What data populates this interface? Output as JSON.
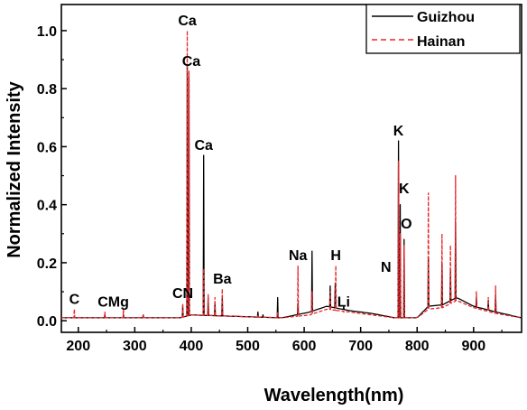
{
  "chart_data": {
    "type": "line",
    "title": "",
    "xlabel": "Wavelength(nm)",
    "ylabel": "Normalized Intensity",
    "xlim": [
      170,
      985
    ],
    "ylim": [
      -0.04,
      1.09
    ],
    "x_ticks": [
      200,
      300,
      400,
      500,
      600,
      700,
      800,
      900
    ],
    "x_tick_labels": [
      "200",
      "300",
      "400",
      "500",
      "600",
      "700",
      "800",
      "900"
    ],
    "y_ticks": [
      0.0,
      0.2,
      0.4,
      0.6,
      0.8,
      1.0
    ],
    "y_tick_labels": [
      "0.0",
      "0.2",
      "0.4",
      "0.6",
      "0.8",
      "1.0"
    ],
    "grid": false,
    "legend_position": "top-right",
    "series": [
      {
        "name": "Guizhou",
        "color": "#000000",
        "dash": "solid",
        "baseline": [
          [
            170,
            0.01
          ],
          [
            380,
            0.01
          ],
          [
            400,
            0.02
          ],
          [
            480,
            0.015
          ],
          [
            560,
            0.01
          ],
          [
            610,
            0.03
          ],
          [
            640,
            0.05
          ],
          [
            680,
            0.035
          ],
          [
            720,
            0.025
          ],
          [
            760,
            0.01
          ],
          [
            800,
            0.01
          ],
          [
            820,
            0.05
          ],
          [
            845,
            0.055
          ],
          [
            870,
            0.08
          ],
          [
            900,
            0.05
          ],
          [
            940,
            0.03
          ],
          [
            985,
            0.01
          ]
        ],
        "peaks": [
          [
            193,
            0.01
          ],
          [
            247,
            0.02
          ],
          [
            280,
            0.02
          ],
          [
            315,
            0.02
          ],
          [
            385,
            0.05
          ],
          [
            393,
            0.88
          ],
          [
            396,
            0.84
          ],
          [
            422,
            0.57
          ],
          [
            430,
            0.08
          ],
          [
            442,
            0.06
          ],
          [
            455,
            0.08
          ],
          [
            518,
            0.03
          ],
          [
            527,
            0.02
          ],
          [
            553,
            0.08
          ],
          [
            589,
            0.06
          ],
          [
            614,
            0.24
          ],
          [
            646,
            0.12
          ],
          [
            655,
            0.13
          ],
          [
            670,
            0.05
          ],
          [
            767,
            0.62
          ],
          [
            770,
            0.4
          ],
          [
            777,
            0.28
          ],
          [
            820,
            0.22
          ],
          [
            844,
            0.2
          ],
          [
            859,
            0.17
          ],
          [
            868,
            0.34
          ],
          [
            905,
            0.08
          ],
          [
            926,
            0.07
          ],
          [
            939,
            0.09
          ]
        ]
      },
      {
        "name": "Hainan",
        "color": "#e8262b",
        "dash": "dashed",
        "baseline": [
          [
            170,
            0.01
          ],
          [
            380,
            0.01
          ],
          [
            400,
            0.02
          ],
          [
            480,
            0.015
          ],
          [
            560,
            0.01
          ],
          [
            610,
            0.02
          ],
          [
            640,
            0.04
          ],
          [
            680,
            0.03
          ],
          [
            720,
            0.02
          ],
          [
            760,
            0.01
          ],
          [
            800,
            0.01
          ],
          [
            820,
            0.04
          ],
          [
            845,
            0.045
          ],
          [
            870,
            0.07
          ],
          [
            900,
            0.045
          ],
          [
            940,
            0.025
          ],
          [
            985,
            0.01
          ]
        ],
        "peaks": [
          [
            193,
            0.04
          ],
          [
            247,
            0.03
          ],
          [
            280,
            0.04
          ],
          [
            315,
            0.02
          ],
          [
            385,
            0.06
          ],
          [
            393,
            1.0
          ],
          [
            396,
            0.86
          ],
          [
            422,
            0.18
          ],
          [
            430,
            0.09
          ],
          [
            442,
            0.08
          ],
          [
            455,
            0.11
          ],
          [
            518,
            0.02
          ],
          [
            553,
            0.03
          ],
          [
            589,
            0.19
          ],
          [
            614,
            0.1
          ],
          [
            646,
            0.1
          ],
          [
            656,
            0.19
          ],
          [
            670,
            0.03
          ],
          [
            767,
            0.55
          ],
          [
            770,
            0.3
          ],
          [
            777,
            0.26
          ],
          [
            820,
            0.44
          ],
          [
            844,
            0.3
          ],
          [
            859,
            0.26
          ],
          [
            868,
            0.5
          ],
          [
            905,
            0.1
          ],
          [
            926,
            0.08
          ],
          [
            939,
            0.12
          ]
        ]
      }
    ],
    "annotations": [
      {
        "text": "Ca",
        "x": 393,
        "y": 1.0
      },
      {
        "text": "Ca",
        "x": 400,
        "y": 0.86
      },
      {
        "text": "Ca",
        "x": 422,
        "y": 0.57
      },
      {
        "text": "Ba",
        "x": 455,
        "y": 0.11
      },
      {
        "text": "C",
        "x": 193,
        "y": 0.04
      },
      {
        "text": "CMg",
        "x": 262,
        "y": 0.03
      },
      {
        "text": "CN",
        "x": 385,
        "y": 0.06
      },
      {
        "text": "Na",
        "x": 589,
        "y": 0.19
      },
      {
        "text": "H",
        "x": 656,
        "y": 0.19
      },
      {
        "text": "Li",
        "x": 670,
        "y": 0.03
      },
      {
        "text": "N",
        "x": 745,
        "y": 0.15
      },
      {
        "text": "K",
        "x": 767,
        "y": 0.62
      },
      {
        "text": "K",
        "x": 777,
        "y": 0.42
      },
      {
        "text": "O",
        "x": 781,
        "y": 0.3
      }
    ]
  }
}
